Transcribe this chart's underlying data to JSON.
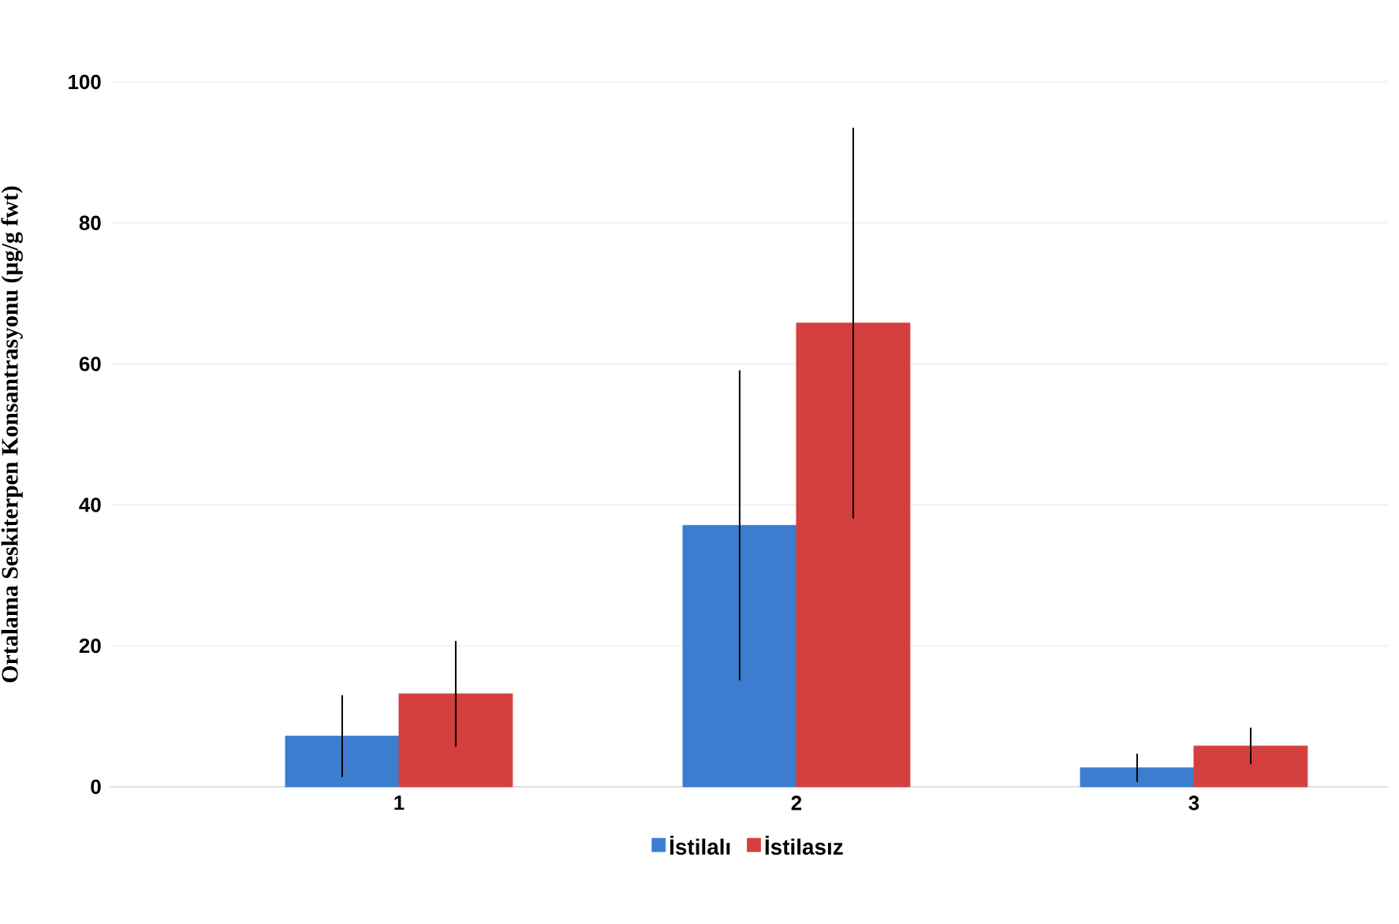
{
  "chart_data": {
    "type": "bar",
    "ylabel": "Ortalama Seskiterpen Konsantrasyonu (µg/g fwt)",
    "categories": [
      "1",
      "2",
      "3"
    ],
    "series": [
      {
        "name": "İstilalı",
        "color": "#3c7dd0",
        "values": [
          7.2,
          37.1,
          2.7
        ],
        "errors": [
          5.8,
          22,
          2
        ]
      },
      {
        "name": "İstilasız",
        "color": "#d43f3f",
        "values": [
          13.2,
          65.8,
          5.8
        ],
        "errors": [
          7.5,
          27.7,
          2.6
        ]
      }
    ],
    "ylim": [
      0,
      100
    ],
    "yticks": [
      0,
      20,
      40,
      60,
      80,
      100
    ],
    "grid": "y",
    "legend": "bottom"
  }
}
